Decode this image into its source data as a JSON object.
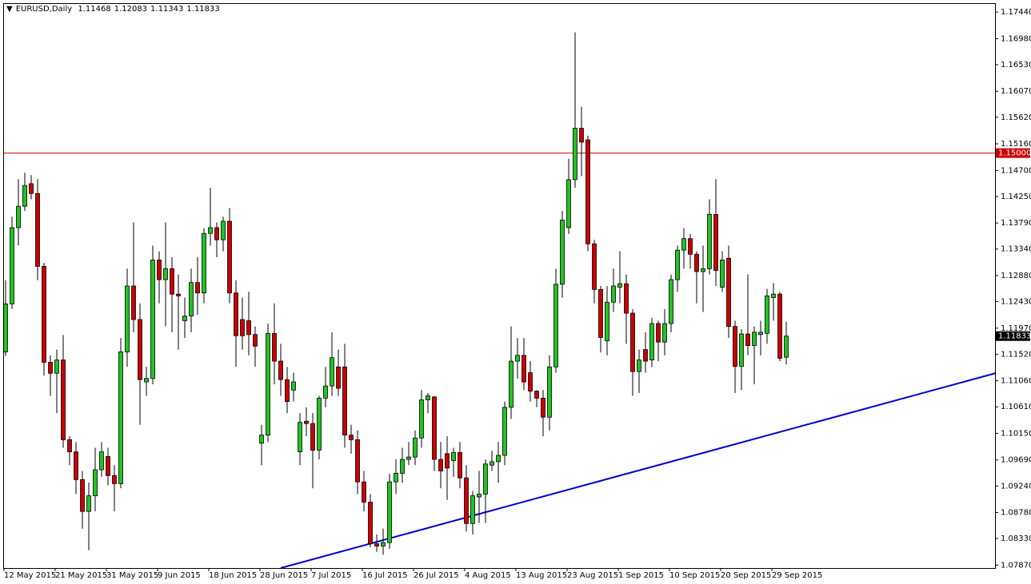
{
  "chart_data": {
    "type": "candlestick",
    "title": "EURUSD,Daily",
    "categories": [
      "12 May 2015",
      null,
      null,
      null,
      null,
      null,
      null,
      null,
      "21 May 2015",
      null,
      null,
      null,
      null,
      null,
      null,
      null,
      "31 May 2015",
      null,
      null,
      null,
      null,
      null,
      null,
      null,
      "9 Jun 2015",
      null,
      null,
      null,
      null,
      null,
      null,
      null,
      "18 Jun 2015",
      null,
      null,
      null,
      null,
      null,
      null,
      null,
      "28 Jun 2015",
      null,
      null,
      null,
      null,
      null,
      null,
      null,
      "7 Jul 2015",
      null,
      null,
      null,
      null,
      null,
      null,
      null,
      "16 Jul 2015",
      null,
      null,
      null,
      null,
      null,
      null,
      null,
      "26 Jul 2015",
      null,
      null,
      null,
      null,
      null,
      null,
      null,
      "4 Aug 2015",
      null,
      null,
      null,
      null,
      null,
      null,
      null,
      "13 Aug 2015",
      null,
      null,
      null,
      null,
      null,
      null,
      null,
      "23 Aug 2015",
      null,
      null,
      null,
      null,
      null,
      null,
      null,
      "1 Sep 2015",
      null,
      null,
      null,
      null,
      null,
      null,
      null,
      "10 Sep 2015",
      null,
      null,
      null,
      null,
      null,
      null,
      null,
      "20 Sep 2015",
      null,
      null,
      null,
      null,
      null,
      null,
      null,
      "29 Sep 2015",
      null,
      null
    ],
    "open": [
      1.1156,
      1.1239,
      1.1371,
      1.1408,
      1.1447,
      1.143,
      1.1304,
      1.1138,
      1.1119,
      1.1142,
      1.1004,
      1.0983,
      1.0935,
      1.088,
      1.0907,
      1.0952,
      1.0975,
      1.0942,
      1.0928,
      1.1156,
      1.127,
      1.1212,
      1.1104,
      1.111,
      1.1315,
      1.1281,
      1.13,
      1.1256,
      1.121,
      1.1218,
      1.1276,
      1.1258,
      1.1361,
      1.1371,
      1.135,
      1.1382,
      1.1258,
      1.1212,
      1.121,
      1.1186,
      1.0998,
      1.1012,
      1.1188,
      1.114,
      1.1108,
      1.109,
      1.0983,
      1.1036,
      1.1032,
      1.0986,
      1.1076,
      1.1097,
      1.113,
      1.113,
      1.1012,
      1.1004,
      1.0931,
      1.0896,
      1.0824,
      1.082,
      1.0826,
      1.0931,
      1.0946,
      1.097,
      1.0974,
      1.1007,
      1.1073,
      1.1078,
      1.097,
      1.098,
      1.0968,
      1.0982,
      1.0938,
      1.0859,
      1.0905,
      1.091,
      1.096,
      1.0966,
      1.0977,
      1.106,
      1.114,
      1.115,
      1.112,
      1.1088,
      1.1076,
      1.1043,
      1.113,
      1.1273,
      1.1371,
      1.1454,
      1.1543,
      1.1523,
      1.1343,
      1.1264,
      1.1175,
      1.1242,
      1.1268,
      1.1274,
      1.1223,
      1.1122,
      1.116,
      1.1142,
      1.1205,
      1.1173,
      1.1205,
      1.1281,
      1.1332,
      1.1352,
      1.1325,
      1.1295,
      1.13,
      1.1394,
      1.1268,
      1.1318,
      1.12,
      1.1131,
      1.1187,
      1.1167,
      1.1186,
      1.1188,
      1.125,
      1.1256,
      1.11468
    ],
    "high": [
      1.128,
      1.139,
      1.1455,
      1.1466,
      1.1462,
      1.1455,
      1.131,
      1.115,
      1.116,
      1.1185,
      1.101,
      1.1,
      1.095,
      1.093,
      1.099,
      1.1,
      1.099,
      1.096,
      1.118,
      1.13,
      1.138,
      1.124,
      1.113,
      1.134,
      1.133,
      1.138,
      1.132,
      1.129,
      1.125,
      1.13,
      1.132,
      1.137,
      1.144,
      1.138,
      1.139,
      1.1405,
      1.128,
      1.125,
      1.126,
      1.12,
      1.103,
      1.1205,
      1.124,
      1.117,
      1.113,
      1.112,
      1.105,
      1.106,
      1.105,
      1.108,
      1.113,
      1.119,
      1.116,
      1.117,
      1.103,
      1.102,
      1.095,
      1.091,
      1.084,
      1.085,
      1.0945,
      1.097,
      1.099,
      1.1,
      1.102,
      1.109,
      1.1085,
      1.108,
      1.1,
      1.101,
      1.099,
      1.1,
      1.096,
      1.0915,
      1.095,
      1.097,
      1.0985,
      1.1,
      1.107,
      1.12,
      1.118,
      1.118,
      1.114,
      1.109,
      1.109,
      1.115,
      1.13,
      1.14,
      1.149,
      1.1709,
      1.158,
      1.153,
      1.135,
      1.127,
      1.127,
      1.13,
      1.133,
      1.129,
      1.123,
      1.116,
      1.119,
      1.1215,
      1.121,
      1.123,
      1.129,
      1.134,
      1.137,
      1.136,
      1.133,
      1.134,
      1.142,
      1.1455,
      1.133,
      1.134,
      1.121,
      1.1195,
      1.129,
      1.12,
      1.121,
      1.1265,
      1.1275,
      1.126,
      1.12083
    ],
    "low": [
      1.1149,
      1.123,
      1.134,
      1.14,
      1.142,
      1.128,
      1.1115,
      1.108,
      1.105,
      1.099,
      1.096,
      1.091,
      1.085,
      1.0813,
      1.088,
      1.094,
      1.0925,
      1.088,
      1.092,
      1.113,
      1.119,
      1.103,
      1.108,
      1.11,
      1.124,
      1.12,
      1.119,
      1.116,
      1.118,
      1.119,
      1.122,
      1.124,
      1.134,
      1.132,
      1.133,
      1.124,
      1.113,
      1.116,
      1.115,
      1.113,
      1.096,
      1.1,
      1.11,
      1.108,
      1.105,
      1.107,
      1.096,
      1.101,
      1.092,
      1.097,
      1.106,
      1.108,
      1.108,
      1.099,
      1.098,
      1.091,
      1.088,
      1.0818,
      1.081,
      1.0805,
      1.0815,
      1.091,
      1.093,
      1.096,
      1.096,
      1.099,
      1.105,
      1.095,
      1.092,
      1.09,
      1.094,
      1.092,
      1.0845,
      1.084,
      1.086,
      1.086,
      1.095,
      1.093,
      1.096,
      1.104,
      1.111,
      1.109,
      1.107,
      1.106,
      1.101,
      1.102,
      1.112,
      1.125,
      1.136,
      1.144,
      1.146,
      1.133,
      1.124,
      1.1155,
      1.115,
      1.1225,
      1.124,
      1.117,
      1.108,
      1.1085,
      1.112,
      1.113,
      1.114,
      1.115,
      1.119,
      1.126,
      1.13,
      1.13,
      1.124,
      1.1225,
      1.129,
      1.127,
      1.126,
      1.118,
      1.1085,
      1.109,
      1.115,
      1.11,
      1.115,
      1.117,
      1.121,
      1.114,
      1.11343
    ],
    "close": [
      1.1239,
      1.1371,
      1.1408,
      1.1444,
      1.143,
      1.1304,
      1.1138,
      1.1119,
      1.1142,
      1.1004,
      1.0983,
      1.0935,
      1.088,
      1.0907,
      1.0952,
      1.0983,
      1.0942,
      1.0928,
      1.1156,
      1.127,
      1.1212,
      1.1108,
      1.111,
      1.1315,
      1.1281,
      1.13,
      1.1256,
      1.1253,
      1.1218,
      1.1276,
      1.1258,
      1.1361,
      1.1371,
      1.135,
      1.1382,
      1.1258,
      1.1184,
      1.1184,
      1.1186,
      1.1166,
      1.1012,
      1.1188,
      1.114,
      1.1108,
      1.107,
      1.1104,
      1.1034,
      1.1032,
      1.0986,
      1.1076,
      1.1097,
      1.1146,
      1.1093,
      1.1012,
      1.1004,
      1.0931,
      1.0896,
      1.0824,
      1.082,
      1.0826,
      1.0931,
      1.0946,
      1.097,
      1.0974,
      1.1007,
      1.1073,
      1.108,
      1.097,
      1.095,
      1.0955,
      1.0982,
      1.0938,
      1.0859,
      1.0907,
      1.091,
      1.0962,
      1.0966,
      1.0977,
      1.106,
      1.114,
      1.115,
      1.1104,
      1.1088,
      1.1076,
      1.1043,
      1.113,
      1.1273,
      1.1384,
      1.1454,
      1.1543,
      1.1519,
      1.1343,
      1.1264,
      1.1181,
      1.1242,
      1.127,
      1.1274,
      1.1223,
      1.1122,
      1.1142,
      1.114,
      1.1205,
      1.1173,
      1.1205,
      1.1281,
      1.1332,
      1.1352,
      1.1325,
      1.1295,
      1.13,
      1.1394,
      1.1297,
      1.1315,
      1.12,
      1.1131,
      1.1187,
      1.1167,
      1.119,
      1.119,
      1.1253,
      1.1256,
      1.1145,
      1.11833
    ],
    "up_color": "#22c422",
    "down_color": "#cc0000",
    "ylim": [
      1.0782,
      1.1758
    ],
    "yticks": [
      {
        "value": 1.0787,
        "label": "1.07870"
      },
      {
        "value": 1.0833,
        "label": "1.08330"
      },
      {
        "value": 1.0878,
        "label": "1.08780"
      },
      {
        "value": 1.0924,
        "label": "1.09240"
      },
      {
        "value": 1.0969,
        "label": "1.09690"
      },
      {
        "value": 1.1015,
        "label": "1.10150"
      },
      {
        "value": 1.1061,
        "label": "1.10610"
      },
      {
        "value": 1.1106,
        "label": "1.11060"
      },
      {
        "value": 1.1152,
        "label": "1.11520"
      },
      {
        "value": 1.1197,
        "label": "1.11970"
      },
      {
        "value": 1.1243,
        "label": "1.12430"
      },
      {
        "value": 1.1288,
        "label": "1.12880"
      },
      {
        "value": 1.1334,
        "label": "1.13340"
      },
      {
        "value": 1.1379,
        "label": "1.13790"
      },
      {
        "value": 1.1425,
        "label": "1.14250"
      },
      {
        "value": 1.147,
        "label": "1.14700"
      },
      {
        "value": 1.1516,
        "label": "1.15160"
      },
      {
        "value": 1.1562,
        "label": "1.15620"
      },
      {
        "value": 1.1607,
        "label": "1.16070"
      },
      {
        "value": 1.1653,
        "label": "1.16530"
      },
      {
        "value": 1.1698,
        "label": "1.16980"
      },
      {
        "value": 1.1744,
        "label": "1.17440"
      }
    ],
    "level_line": {
      "value": 1.15,
      "label": "1.15000",
      "color": "#cc0000"
    },
    "trendline": {
      "x": [
        43,
        155
      ],
      "y": [
        1.0782,
        1.112
      ],
      "color": "#0000cc"
    }
  }
}
